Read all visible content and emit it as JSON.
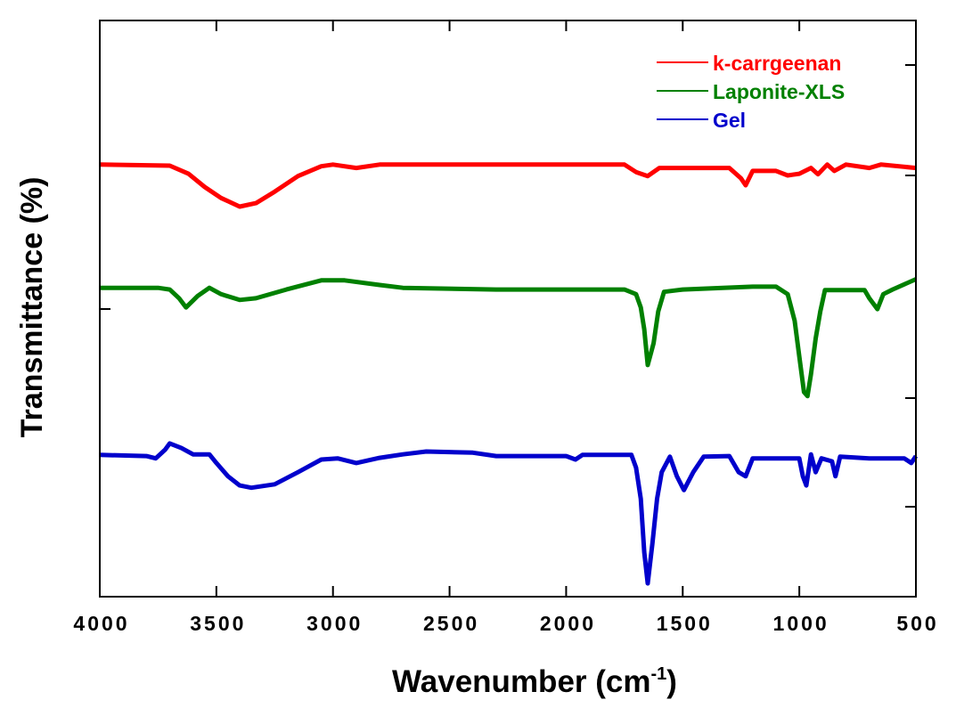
{
  "chart_data": {
    "type": "line",
    "title": "",
    "xlabel": "Wavenumber (cm",
    "xlabel_sup": "-1",
    "xlabel_end": ")",
    "ylabel": "Transmittance (%)",
    "xlim": [
      4000,
      500
    ],
    "ylim": [
      0,
      100
    ],
    "x_reversed": true,
    "x_ticks": [
      "4000",
      "3500",
      "3000",
      "2500",
      "2000",
      "1500",
      "1000",
      "500"
    ],
    "grid": false,
    "legend_position": "top-right",
    "series": [
      {
        "name": "k-carrgeenan",
        "color": "#ff0000",
        "points": [
          [
            4000,
            75.0
          ],
          [
            3700,
            74.8
          ],
          [
            3620,
            73.4
          ],
          [
            3550,
            71.1
          ],
          [
            3480,
            69.2
          ],
          [
            3400,
            67.7
          ],
          [
            3330,
            68.3
          ],
          [
            3250,
            70.3
          ],
          [
            3150,
            73.0
          ],
          [
            3050,
            74.7
          ],
          [
            3000,
            75.0
          ],
          [
            2900,
            74.4
          ],
          [
            2800,
            75.0
          ],
          [
            1750,
            75.0
          ],
          [
            1700,
            73.7
          ],
          [
            1650,
            73.0
          ],
          [
            1600,
            74.4
          ],
          [
            1300,
            74.4
          ],
          [
            1250,
            72.6
          ],
          [
            1230,
            71.4
          ],
          [
            1200,
            73.9
          ],
          [
            1100,
            73.9
          ],
          [
            1050,
            73.1
          ],
          [
            1000,
            73.4
          ],
          [
            950,
            74.4
          ],
          [
            920,
            73.3
          ],
          [
            880,
            75.0
          ],
          [
            850,
            73.9
          ],
          [
            800,
            75.0
          ],
          [
            700,
            74.4
          ],
          [
            650,
            75.0
          ],
          [
            500,
            74.4
          ]
        ]
      },
      {
        "name": "Laponite-XLS",
        "color": "#008000",
        "points": [
          [
            4000,
            53.6
          ],
          [
            3750,
            53.6
          ],
          [
            3700,
            53.3
          ],
          [
            3660,
            51.8
          ],
          [
            3630,
            50.2
          ],
          [
            3580,
            52.2
          ],
          [
            3530,
            53.6
          ],
          [
            3480,
            52.5
          ],
          [
            3400,
            51.5
          ],
          [
            3330,
            51.8
          ],
          [
            3200,
            53.3
          ],
          [
            3050,
            54.9
          ],
          [
            2950,
            54.9
          ],
          [
            2800,
            54.1
          ],
          [
            2700,
            53.6
          ],
          [
            2300,
            53.3
          ],
          [
            2000,
            53.3
          ],
          [
            1750,
            53.3
          ],
          [
            1700,
            52.5
          ],
          [
            1680,
            50.2
          ],
          [
            1665,
            46.4
          ],
          [
            1650,
            40.2
          ],
          [
            1625,
            44.0
          ],
          [
            1605,
            49.5
          ],
          [
            1580,
            52.9
          ],
          [
            1500,
            53.3
          ],
          [
            1200,
            53.8
          ],
          [
            1100,
            53.8
          ],
          [
            1050,
            52.5
          ],
          [
            1020,
            47.9
          ],
          [
            1000,
            41.7
          ],
          [
            980,
            35.5
          ],
          [
            965,
            34.8
          ],
          [
            950,
            38.6
          ],
          [
            930,
            44.8
          ],
          [
            910,
            49.5
          ],
          [
            890,
            53.2
          ],
          [
            800,
            53.2
          ],
          [
            720,
            53.2
          ],
          [
            700,
            51.8
          ],
          [
            665,
            49.9
          ],
          [
            640,
            52.5
          ],
          [
            600,
            53.3
          ],
          [
            500,
            55.1
          ]
        ]
      },
      {
        "name": "Gel",
        "color": "#0000cc",
        "points": [
          [
            4000,
            24.6
          ],
          [
            3800,
            24.4
          ],
          [
            3760,
            24.0
          ],
          [
            3720,
            25.5
          ],
          [
            3700,
            26.6
          ],
          [
            3650,
            25.8
          ],
          [
            3600,
            24.7
          ],
          [
            3530,
            24.7
          ],
          [
            3500,
            23.2
          ],
          [
            3450,
            20.9
          ],
          [
            3400,
            19.3
          ],
          [
            3350,
            18.9
          ],
          [
            3250,
            19.5
          ],
          [
            3150,
            21.6
          ],
          [
            3050,
            23.8
          ],
          [
            2980,
            24.0
          ],
          [
            2900,
            23.2
          ],
          [
            2800,
            24.1
          ],
          [
            2700,
            24.7
          ],
          [
            2600,
            25.2
          ],
          [
            2400,
            25.0
          ],
          [
            2300,
            24.4
          ],
          [
            2000,
            24.4
          ],
          [
            1960,
            23.8
          ],
          [
            1930,
            24.6
          ],
          [
            1720,
            24.6
          ],
          [
            1700,
            22.4
          ],
          [
            1680,
            17.0
          ],
          [
            1665,
            7.7
          ],
          [
            1650,
            2.3
          ],
          [
            1630,
            9.3
          ],
          [
            1610,
            17.0
          ],
          [
            1590,
            21.6
          ],
          [
            1555,
            24.3
          ],
          [
            1525,
            20.9
          ],
          [
            1495,
            18.5
          ],
          [
            1455,
            21.6
          ],
          [
            1410,
            24.3
          ],
          [
            1300,
            24.4
          ],
          [
            1260,
            21.6
          ],
          [
            1230,
            20.9
          ],
          [
            1200,
            24.0
          ],
          [
            1000,
            24.0
          ],
          [
            985,
            20.9
          ],
          [
            970,
            19.3
          ],
          [
            950,
            24.7
          ],
          [
            930,
            21.6
          ],
          [
            905,
            24.0
          ],
          [
            860,
            23.5
          ],
          [
            845,
            20.9
          ],
          [
            825,
            24.3
          ],
          [
            700,
            24.0
          ],
          [
            550,
            24.0
          ],
          [
            520,
            23.2
          ],
          [
            500,
            24.4
          ]
        ]
      }
    ]
  }
}
